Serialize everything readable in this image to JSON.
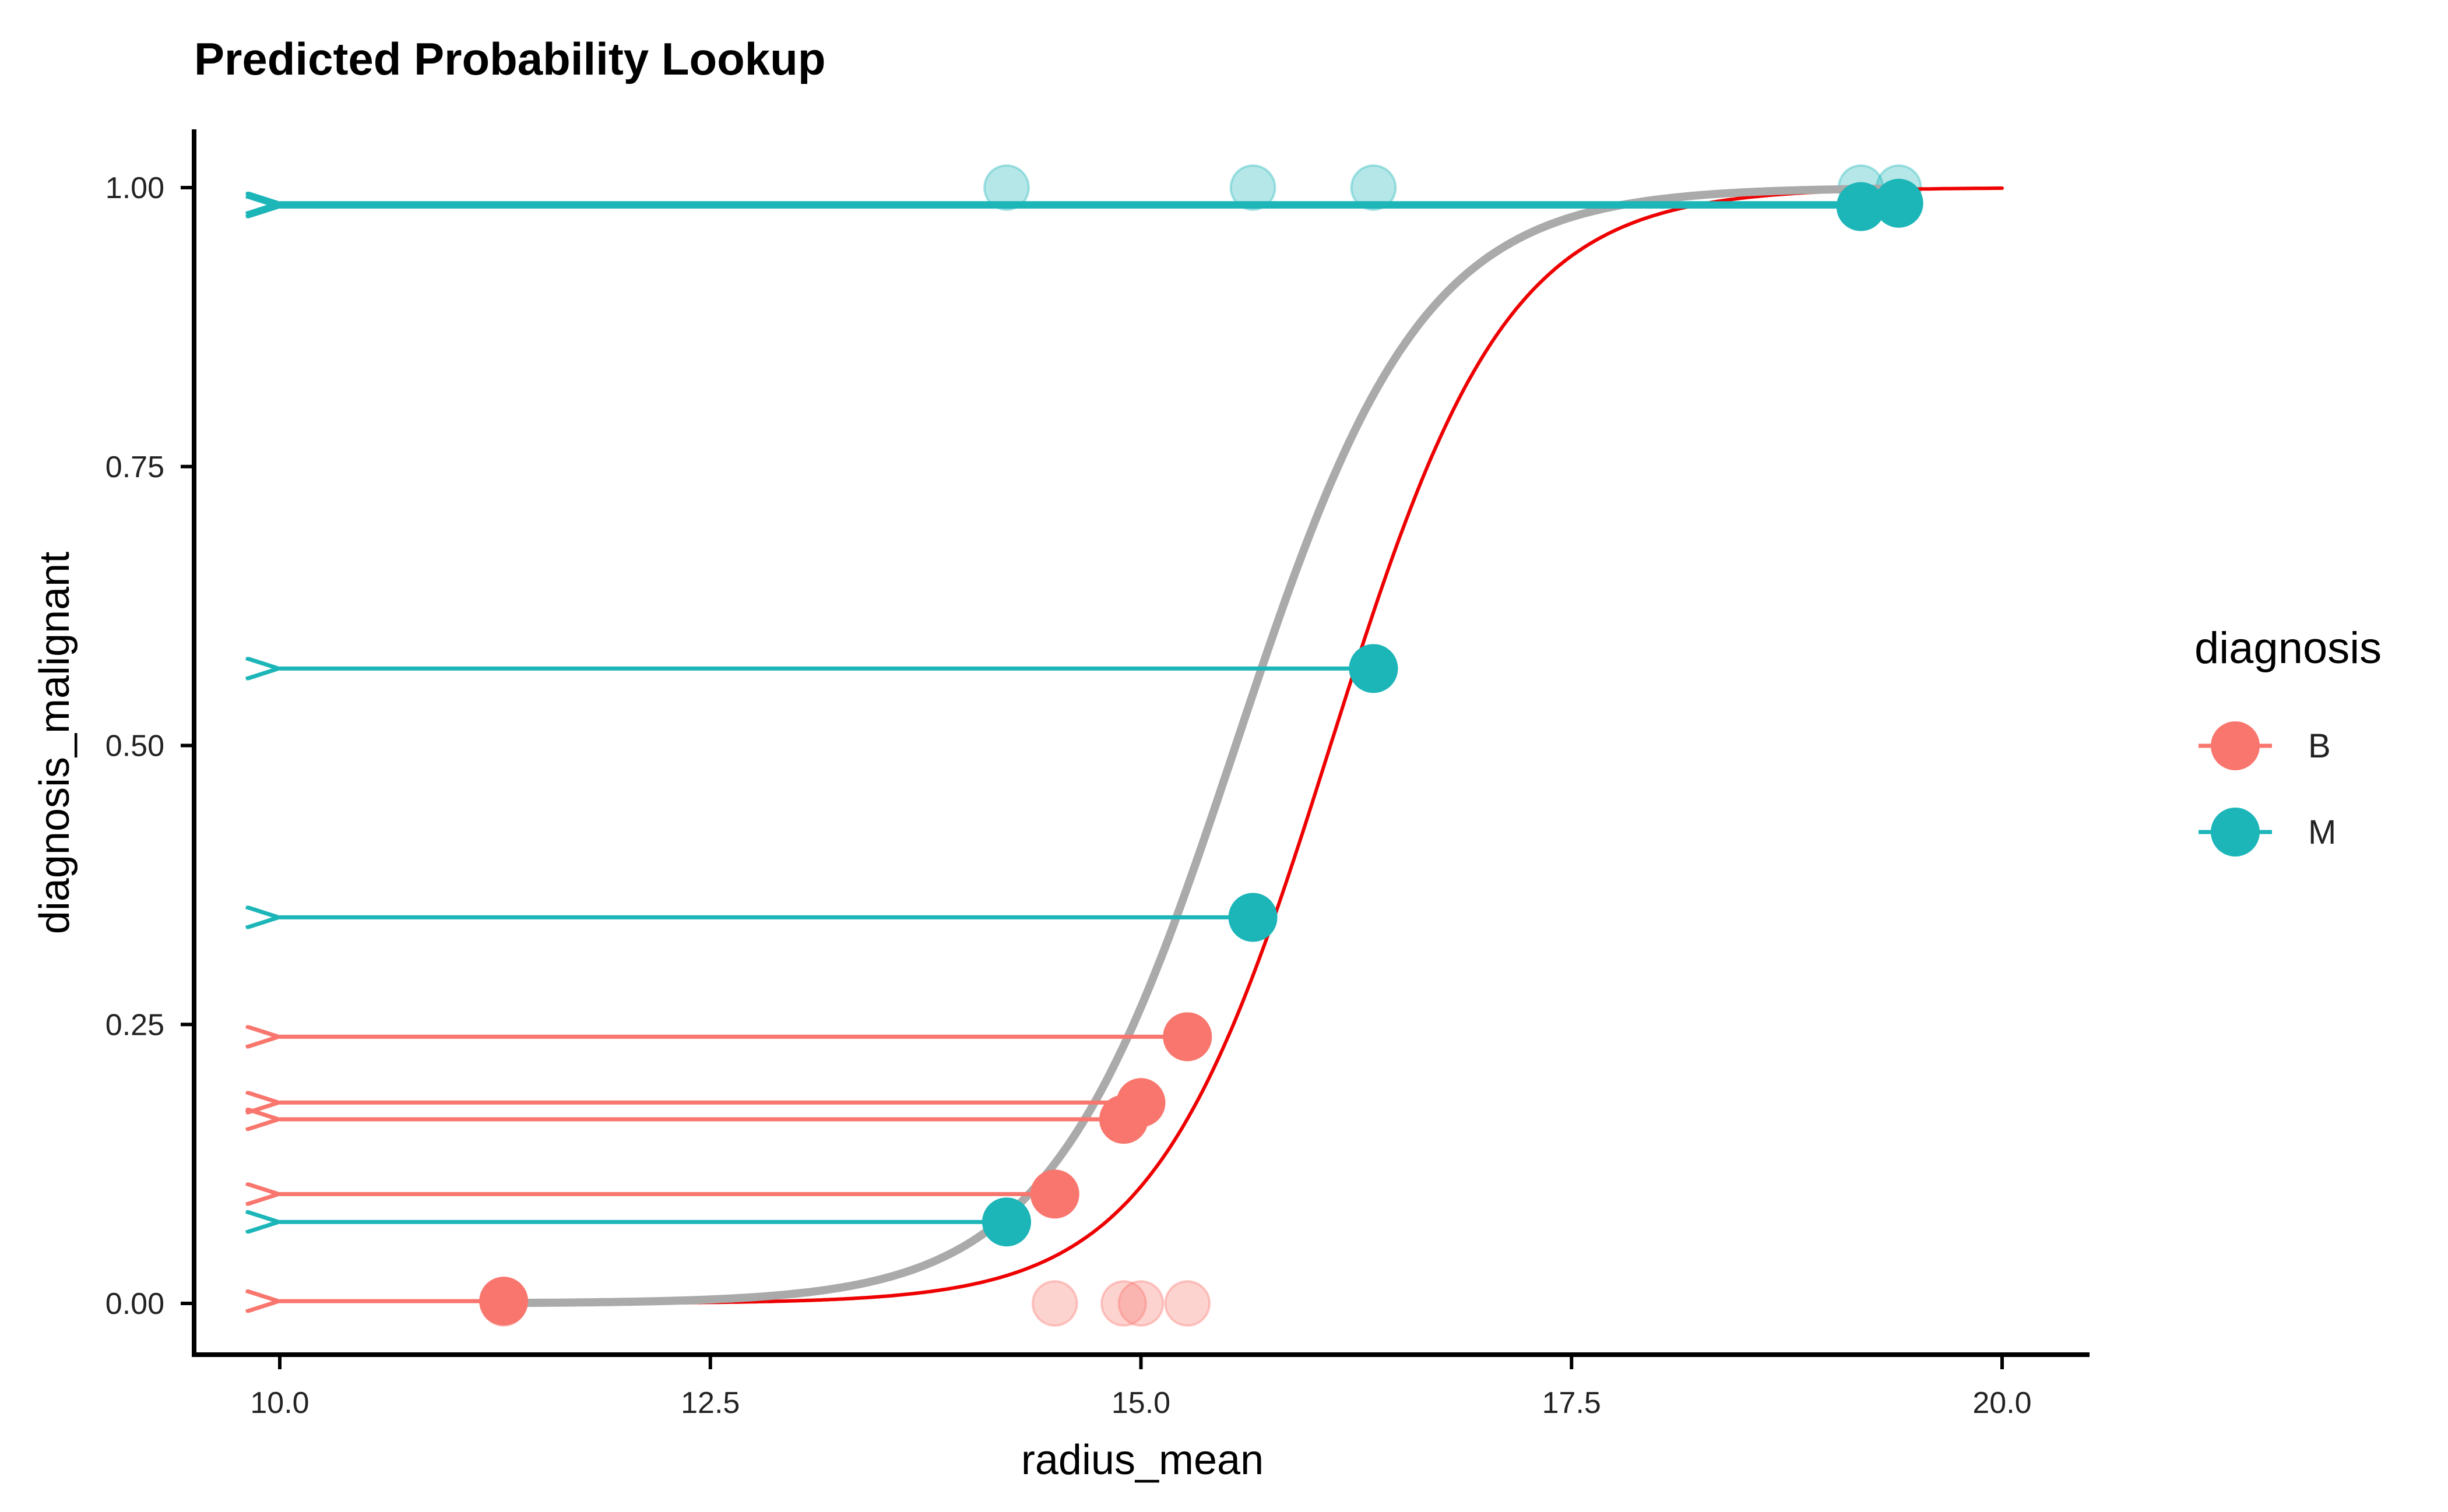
{
  "chart_data": {
    "type": "scatter",
    "title": "Predicted Probability Lookup",
    "xlabel": "radius_mean",
    "ylabel": "diagnosis_malignant",
    "xlim": [
      10.0,
      20.0
    ],
    "ylim": [
      0.0,
      1.0
    ],
    "x_ticks": [
      "10.0",
      "12.5",
      "15.0",
      "17.5",
      "20.0"
    ],
    "y_ticks": [
      "0.00",
      "0.25",
      "0.50",
      "0.75",
      "1.00"
    ],
    "grid": false,
    "legend": {
      "title": "diagnosis",
      "position": "right",
      "entries": [
        {
          "label": "B",
          "color": "#F8766D"
        },
        {
          "label": "M",
          "color": "#00BFC4"
        }
      ]
    },
    "observed_points": [
      {
        "x": 11.3,
        "y": 0,
        "diagnosis": "B"
      },
      {
        "x": 14.5,
        "y": 0,
        "diagnosis": "B"
      },
      {
        "x": 14.9,
        "y": 0,
        "diagnosis": "B"
      },
      {
        "x": 15.0,
        "y": 0,
        "diagnosis": "B"
      },
      {
        "x": 15.27,
        "y": 0,
        "diagnosis": "B"
      },
      {
        "x": 14.22,
        "y": 1,
        "diagnosis": "M"
      },
      {
        "x": 15.65,
        "y": 1,
        "diagnosis": "M"
      },
      {
        "x": 16.35,
        "y": 1,
        "diagnosis": "M"
      },
      {
        "x": 19.18,
        "y": 1,
        "diagnosis": "M"
      },
      {
        "x": 19.4,
        "y": 1,
        "diagnosis": "M"
      }
    ],
    "predicted_points": [
      {
        "x": 11.3,
        "y": 0.002,
        "diagnosis": "B"
      },
      {
        "x": 14.5,
        "y": 0.098,
        "diagnosis": "B"
      },
      {
        "x": 14.9,
        "y": 0.165,
        "diagnosis": "B"
      },
      {
        "x": 15.0,
        "y": 0.18,
        "diagnosis": "B"
      },
      {
        "x": 15.27,
        "y": 0.239,
        "diagnosis": "B"
      },
      {
        "x": 14.22,
        "y": 0.073,
        "diagnosis": "M"
      },
      {
        "x": 15.65,
        "y": 0.346,
        "diagnosis": "M"
      },
      {
        "x": 16.35,
        "y": 0.569,
        "diagnosis": "M"
      },
      {
        "x": 19.18,
        "y": 0.983,
        "diagnosis": "M"
      },
      {
        "x": 19.4,
        "y": 0.986,
        "diagnosis": "M"
      }
    ],
    "series": [
      {
        "name": "fitted logistic (red)",
        "color": "#EE0000",
        "midpoint": 16.1,
        "slope": 1.95
      },
      {
        "name": "logistic smooth (gray)",
        "color": "#AAAAAA",
        "midpoint": 15.55,
        "slope": 1.85
      }
    ],
    "arrows_to_x": 10.0
  }
}
